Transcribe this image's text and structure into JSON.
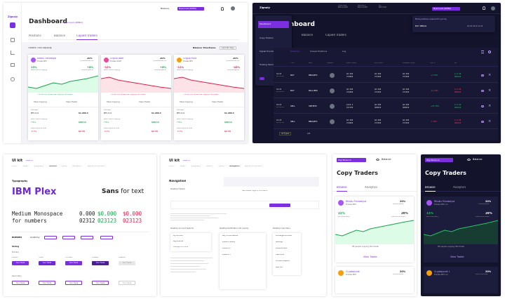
{
  "p1": {
    "logo": "Zignaly",
    "balance": "Balance",
    "account": "MyAccount (DEMO)",
    "title": "Dashboard",
    "subtitle": "MyAccount (DEMO)",
    "tabs": [
      "Positions",
      "Balance",
      "Copied Traders"
    ],
    "copying": "Traders I am copying:",
    "balance_timeframe": "Balance Timeframe",
    "timeframe_value": "Last 90 days",
    "cards": [
      {
        "name": "Ritoku Trendalyst",
        "trades": "Trades BTC",
        "commission": "20%",
        "commission_label": "COMMISSION FEE",
        "ret": "15%",
        "ret_label": "Return since copying",
        "prev": "+8%",
        "prev_label": "Previous period",
        "note": "You and 85 others are copying this trader",
        "stop": "Stop Copying",
        "view": "View Trader",
        "allocated_label": "Allocated",
        "allocated": "$1 296.4",
        "pnl_label": "Return since copying",
        "pnl": "$90.12",
        "open_label": "Open positions now",
        "open": "$2.34",
        "a": "BTC 0.0",
        "pnl_pct": "7.6%",
        "open_pct": "-0.7%"
      },
      {
        "name": "Crypto Joker",
        "trades": "Trades USDT",
        "commission": "20%",
        "commission_label": "COMMISSION FEE",
        "ret": "-12%",
        "ret_label": "Return since copying",
        "prev": "+6%",
        "prev_label": "Previous period",
        "note": "You and 85 others are copying this trader",
        "stop": "Stop Copying",
        "view": "View Trader",
        "allocated_label": "Allocated",
        "allocated": "$1 296.4",
        "pnl_label": "Return since copying",
        "pnl": "$90.12",
        "open_label": "Open positions now",
        "open": "$2.34",
        "a": "BTC 0.0",
        "pnl_pct": "7.6%",
        "open_pct": "-0.7%"
      },
      {
        "name": "Crypto Punk",
        "trades": "Trades BTC",
        "commission": "20%",
        "commission_label": "COMMISSION FEE",
        "ret": "-11%",
        "ret_label": "Return since copying",
        "prev": "-45%",
        "prev_label": "Previous period",
        "note": "You and 85 others are copying this trader",
        "stop": "Stop Copying",
        "view": "View Trader",
        "allocated_label": "Allocated",
        "allocated": "$1 296.4",
        "pnl_label": "Return since copying",
        "pnl": "$90.12",
        "open_label": "Open positions now",
        "open": "$2.34",
        "a": "BTC 0.0",
        "pnl_pct": "7.6%",
        "open_pct": "-0.7%"
      }
    ]
  },
  "p2": {
    "logo": "Zignaly",
    "title": "Dashboard",
    "menu": [
      "Dashboard",
      "Copy Traders",
      "Signal Providers",
      "Trading Terminal"
    ],
    "tabs": [
      "Balance",
      "Copied Traders"
    ],
    "subtabs": [
      "Positions",
      "Closed Positions",
      "Log"
    ],
    "notif_title": "More positions opened for you by",
    "notif_item": "BUY MBS/AI",
    "notif_date": "05.05.2019 12:08",
    "account": "MyAccount (DEMO)",
    "header_cols": [
      "TYPE",
      "PAIR",
      "TRADER",
      "ENTRY PRICE",
      "EXIT PRICE",
      "CURRENT PRICE",
      "P/L %",
      "P/L"
    ],
    "rows": [
      {
        "date": "04.06",
        "time": "20:30:39",
        "type": "BUY",
        "pair": "MBA/BTC",
        "p1": "$0.000",
        "p1b": "272800",
        "p2": "$0.000",
        "p2b": "273390",
        "p3": "$0.000",
        "p3b": "273390",
        "pl": "+7.78%",
        "plv": "$-0.00",
        "plvb": "000245"
      },
      {
        "date": "04.06",
        "time": "20:30:39",
        "type": "BUY",
        "pair": "PAL1/BTC",
        "p1": "$0.000",
        "p1b": "272800",
        "p2": "$0.000",
        "p2b": "273390",
        "p3": "$0.000",
        "p3b": "273390",
        "pl": "-12.78%",
        "plv": "$-0.00",
        "plvb": "000245"
      },
      {
        "date": "04.06",
        "time": "20:30:39",
        "type": "SELL",
        "pair": "SNT/BTC",
        "p1": "$122.9",
        "p1b": "107150",
        "p2": "$0.000",
        "p2b": "000025",
        "p3": "$0.000",
        "p3b": "000025",
        "pl": "+47.78%",
        "plv": "$-0.00",
        "plvb": "000245"
      },
      {
        "date": "04.06",
        "time": "20:30:39",
        "type": "SELL",
        "pair": "MBA/BTC",
        "p1": "$0.000",
        "p1b": "272800",
        "p2": "$0.000",
        "p2b": "273390",
        "p3": "$0.000",
        "p3b": "273390",
        "pl": "-7.78%",
        "plv": "$-0.00",
        "plvb": "000245"
      }
    ],
    "filter": "All Types",
    "page": "1/6"
  },
  "p3": {
    "title": "UI kit",
    "sub": "page 01",
    "nav": [
      "Colors",
      "Layers",
      "Typography",
      "Buttons",
      "Inputs",
      "Navigation",
      "Special Components"
    ],
    "typography": "Typography",
    "font1": "IBM Plex",
    "font2a": "Sans",
    "font2b": "for text",
    "mono": "Medium Monospace",
    "mono2": "for numbers",
    "nums1": [
      "0.000",
      "$0.000",
      "$0.000"
    ],
    "nums2": [
      "02312",
      "023123",
      "023123"
    ],
    "buttons": "Buttons",
    "anatomy": "Anatomy",
    "sizing": "Sizing",
    "primary": "Primary",
    "secondary": "Secondary",
    "states": [
      "Default",
      "Hover",
      "Focused",
      "Pressed",
      "Disabled"
    ],
    "btn": "Your Trade"
  },
  "p4": {
    "title": "UI kit",
    "sub": "page 03",
    "nav": [
      "Colors",
      "Layers",
      "Typography",
      "Buttons",
      "Inputs",
      "Navigation",
      "Special Components"
    ],
    "navigation": "Navigation",
    "desktop_header": "Desktop Header",
    "note": "See Master Page for animation",
    "account_selector": "Desktop Account Selector",
    "notif_overlay": "Desktop Notification list overlay",
    "user_menu": "Desktop User Menu",
    "menu_items": [
      "Exchange Accounts",
      "Settings",
      "Personal Area",
      "Help Docs",
      "Connect Support",
      "Sign out"
    ],
    "accounts": [
      "My Account",
      "Big Binance",
      "Manage Accounts"
    ],
    "notifications": [
      "Buy 4 notifications",
      "Position MBS/AI",
      "Position 2",
      "Position 3"
    ]
  },
  "p5": {
    "exchange": "Zigi Binance",
    "balance": "Balance",
    "title": "Copy Traders",
    "tabs": [
      "Browse",
      "Analytics"
    ],
    "trader": "Ritoku Trendalyst",
    "trades": "Trades BTC",
    "commission": "20%",
    "commission_label": "COMMISSION",
    "ret": "15%",
    "ret_label": "RETURN (90D)",
    "open": "20%",
    "open_label": "OPEN POSITIONS",
    "note": "85 people copying this trader",
    "view": "View Trader",
    "trader2": "Cryptopunk",
    "trades2": "Trades BTC",
    "commission2": "20%",
    "commission2_label": "COMMISSION"
  },
  "p6": {
    "exchange": "Zigi Binance",
    "balance": "Balance",
    "title": "Copy Traders",
    "tabs": [
      "Browse",
      "Analytics"
    ],
    "trader": "Ritoku Trendalyst",
    "trades": "Trades BTC on",
    "commission": "20%",
    "commission_label": "COMMISSION",
    "ret": "15%",
    "ret_label": "RETURN (90D)",
    "open": "20%",
    "open_label": "OPEN POSITIONS",
    "note": "85 people copying this trader",
    "view": "View Trader",
    "trader2": "Cryptopunk I",
    "trades2": "Trades BTC on",
    "commission2": "20%",
    "commission2_label": "CERTIFICATION"
  },
  "colors": {
    "purple": "#7b2fe0",
    "green": "#16a34a",
    "red": "#e11d48",
    "dark": "#13132b"
  }
}
